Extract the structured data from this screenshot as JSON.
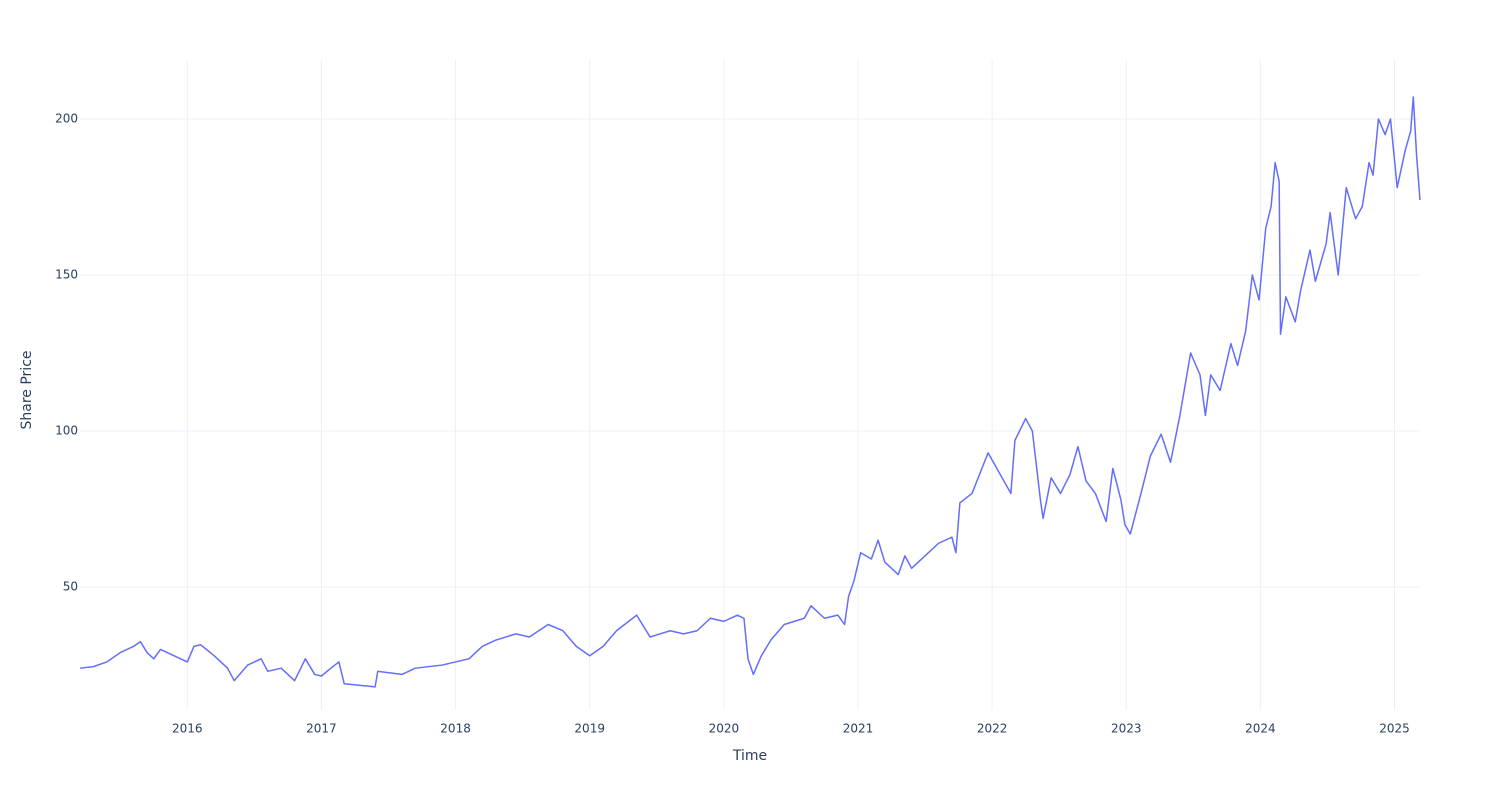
{
  "chart_data": {
    "type": "line",
    "x_label": "Time",
    "y_label": "Share Price",
    "x": [
      2015.2,
      2015.3,
      2015.4,
      2015.5,
      2015.6,
      2015.65,
      2015.7,
      2015.75,
      2015.8,
      2015.9,
      2016.0,
      2016.05,
      2016.1,
      2016.2,
      2016.3,
      2016.35,
      2016.45,
      2016.55,
      2016.6,
      2016.7,
      2016.8,
      2016.88,
      2016.95,
      2017.0,
      2017.07,
      2017.13,
      2017.17,
      2017.4,
      2017.42,
      2017.6,
      2017.7,
      2017.9,
      2018.0,
      2018.1,
      2018.2,
      2018.3,
      2018.45,
      2018.55,
      2018.69,
      2018.8,
      2018.9,
      2019.0,
      2019.1,
      2019.2,
      2019.35,
      2019.45,
      2019.6,
      2019.7,
      2019.8,
      2019.9,
      2020.0,
      2020.1,
      2020.15,
      2020.18,
      2020.22,
      2020.28,
      2020.35,
      2020.45,
      2020.6,
      2020.65,
      2020.75,
      2020.85,
      2020.9,
      2020.93,
      2020.97,
      2021.02,
      2021.1,
      2021.15,
      2021.2,
      2021.3,
      2021.35,
      2021.4,
      2021.5,
      2021.6,
      2021.7,
      2021.73,
      2021.76,
      2021.85,
      2021.97,
      2022.14,
      2022.17,
      2022.25,
      2022.3,
      2022.36,
      2022.38,
      2022.44,
      2022.51,
      2022.58,
      2022.64,
      2022.7,
      2022.77,
      2022.85,
      2022.9,
      2022.96,
      2022.99,
      2023.03,
      2023.11,
      2023.18,
      2023.26,
      2023.33,
      2023.4,
      2023.48,
      2023.55,
      2023.59,
      2023.63,
      2023.7,
      2023.78,
      2023.83,
      2023.89,
      2023.94,
      2023.99,
      2024.04,
      2024.08,
      2024.11,
      2024.14,
      2024.15,
      2024.19,
      2024.26,
      2024.3,
      2024.37,
      2024.41,
      2024.49,
      2024.52,
      2024.58,
      2024.64,
      2024.71,
      2024.76,
      2024.81,
      2024.84,
      2024.88,
      2024.93,
      2024.97,
      2025.02,
      2025.08,
      2025.12,
      2025.14,
      2025.165,
      2025.19
    ],
    "series": [
      {
        "color": "#636efa",
        "values": [
          24,
          24.5,
          26,
          29,
          31,
          32.5,
          29,
          27,
          30,
          28,
          26,
          31,
          31.5,
          28,
          24,
          20,
          25,
          27,
          23,
          24,
          20,
          27,
          22,
          21.5,
          24,
          26,
          19,
          18,
          23,
          22,
          24,
          25,
          26,
          27,
          31,
          33,
          35,
          34,
          38,
          36,
          31,
          28,
          31,
          36,
          41,
          34,
          36,
          35,
          36,
          40,
          39,
          41,
          40,
          27,
          22,
          28,
          33,
          38,
          40,
          44,
          40,
          41,
          38,
          47,
          52,
          61,
          59,
          65,
          58,
          54,
          60,
          56,
          60,
          64,
          66,
          61,
          77,
          80,
          93,
          80,
          97,
          104,
          100,
          78,
          72,
          85,
          80,
          86,
          95,
          84,
          80,
          71,
          88,
          78,
          70,
          67,
          80,
          92,
          99,
          90,
          105,
          125,
          118,
          105,
          118,
          113,
          128,
          121,
          132,
          150,
          142,
          165,
          172,
          186,
          180,
          131,
          143,
          135,
          145,
          158,
          148,
          160,
          170,
          150,
          178,
          168,
          172,
          186,
          182,
          200,
          195,
          200,
          178,
          190,
          196,
          207,
          188,
          174
        ]
      }
    ],
    "xlim": [
      2015.2,
      2025.19
    ],
    "xticks": [
      2016,
      2017,
      2018,
      2019,
      2020,
      2021,
      2022,
      2023,
      2024,
      2025
    ],
    "ylim": [
      10.6,
      218.9
    ],
    "yticks": [
      50,
      100,
      150,
      200
    ],
    "grid": true
  }
}
